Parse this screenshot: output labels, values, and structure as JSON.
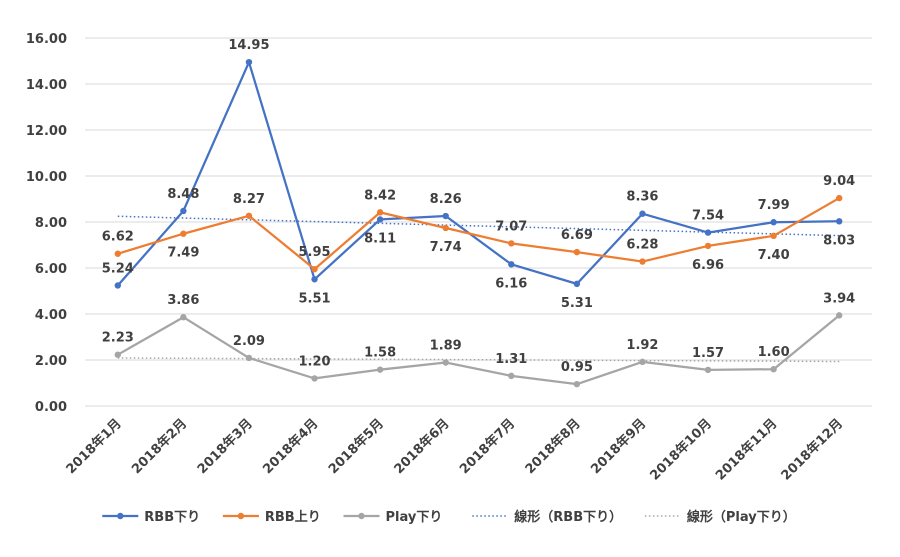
{
  "chart_data": {
    "type": "line",
    "title": "",
    "xlabel": "",
    "ylabel": "",
    "ylim": [
      0,
      16
    ],
    "yticks": [
      "0.00",
      "2.00",
      "4.00",
      "6.00",
      "8.00",
      "10.00",
      "12.00",
      "14.00",
      "16.00"
    ],
    "grid": true,
    "legend_position": "bottom",
    "categories": [
      "2018年1月",
      "2018年2月",
      "2018年3月",
      "2018年4月",
      "2018年5月",
      "2018年6月",
      "2018年7月",
      "2018年8月",
      "2018年9月",
      "2018年10月",
      "2018年11月",
      "2018年12月"
    ],
    "series": [
      {
        "name": "RBB下り",
        "color": "#4472c4",
        "values": [
          5.24,
          8.48,
          14.95,
          5.51,
          8.11,
          8.26,
          6.16,
          5.31,
          8.36,
          7.54,
          7.99,
          8.03
        ],
        "labels": [
          "5.24",
          "8.48",
          "14.95",
          "5.51",
          "8.11",
          "8.26",
          "6.16",
          "5.31",
          "8.36",
          "7.54",
          "7.99",
          "8.03"
        ]
      },
      {
        "name": "RBB上り",
        "color": "#ed7d31",
        "values": [
          6.62,
          7.49,
          8.27,
          5.95,
          8.42,
          7.74,
          7.07,
          6.69,
          6.28,
          6.96,
          7.4,
          9.04
        ],
        "labels": [
          "6.62",
          "7.49",
          "8.27",
          "5.95",
          "8.42",
          "7.74",
          "7.07",
          "6.69",
          "6.28",
          "6.96",
          "7.40",
          "9.04"
        ]
      },
      {
        "name": "Play下り",
        "color": "#a5a5a5",
        "values": [
          2.23,
          3.86,
          2.09,
          1.2,
          1.58,
          1.89,
          1.31,
          0.95,
          1.92,
          1.57,
          1.6,
          3.94
        ],
        "labels": [
          "2.23",
          "3.86",
          "2.09",
          "1.20",
          "1.58",
          "1.89",
          "1.31",
          "0.95",
          "1.92",
          "1.57",
          "1.60",
          "3.94"
        ]
      }
    ],
    "trendlines": [
      {
        "name": "線形（RBB下り）",
        "of": "RBB下り",
        "color": "#4472c4",
        "style": "dotted"
      },
      {
        "name": "線形（Play下り）",
        "of": "Play下り",
        "color": "#a5a5a5",
        "style": "dotted"
      }
    ]
  }
}
